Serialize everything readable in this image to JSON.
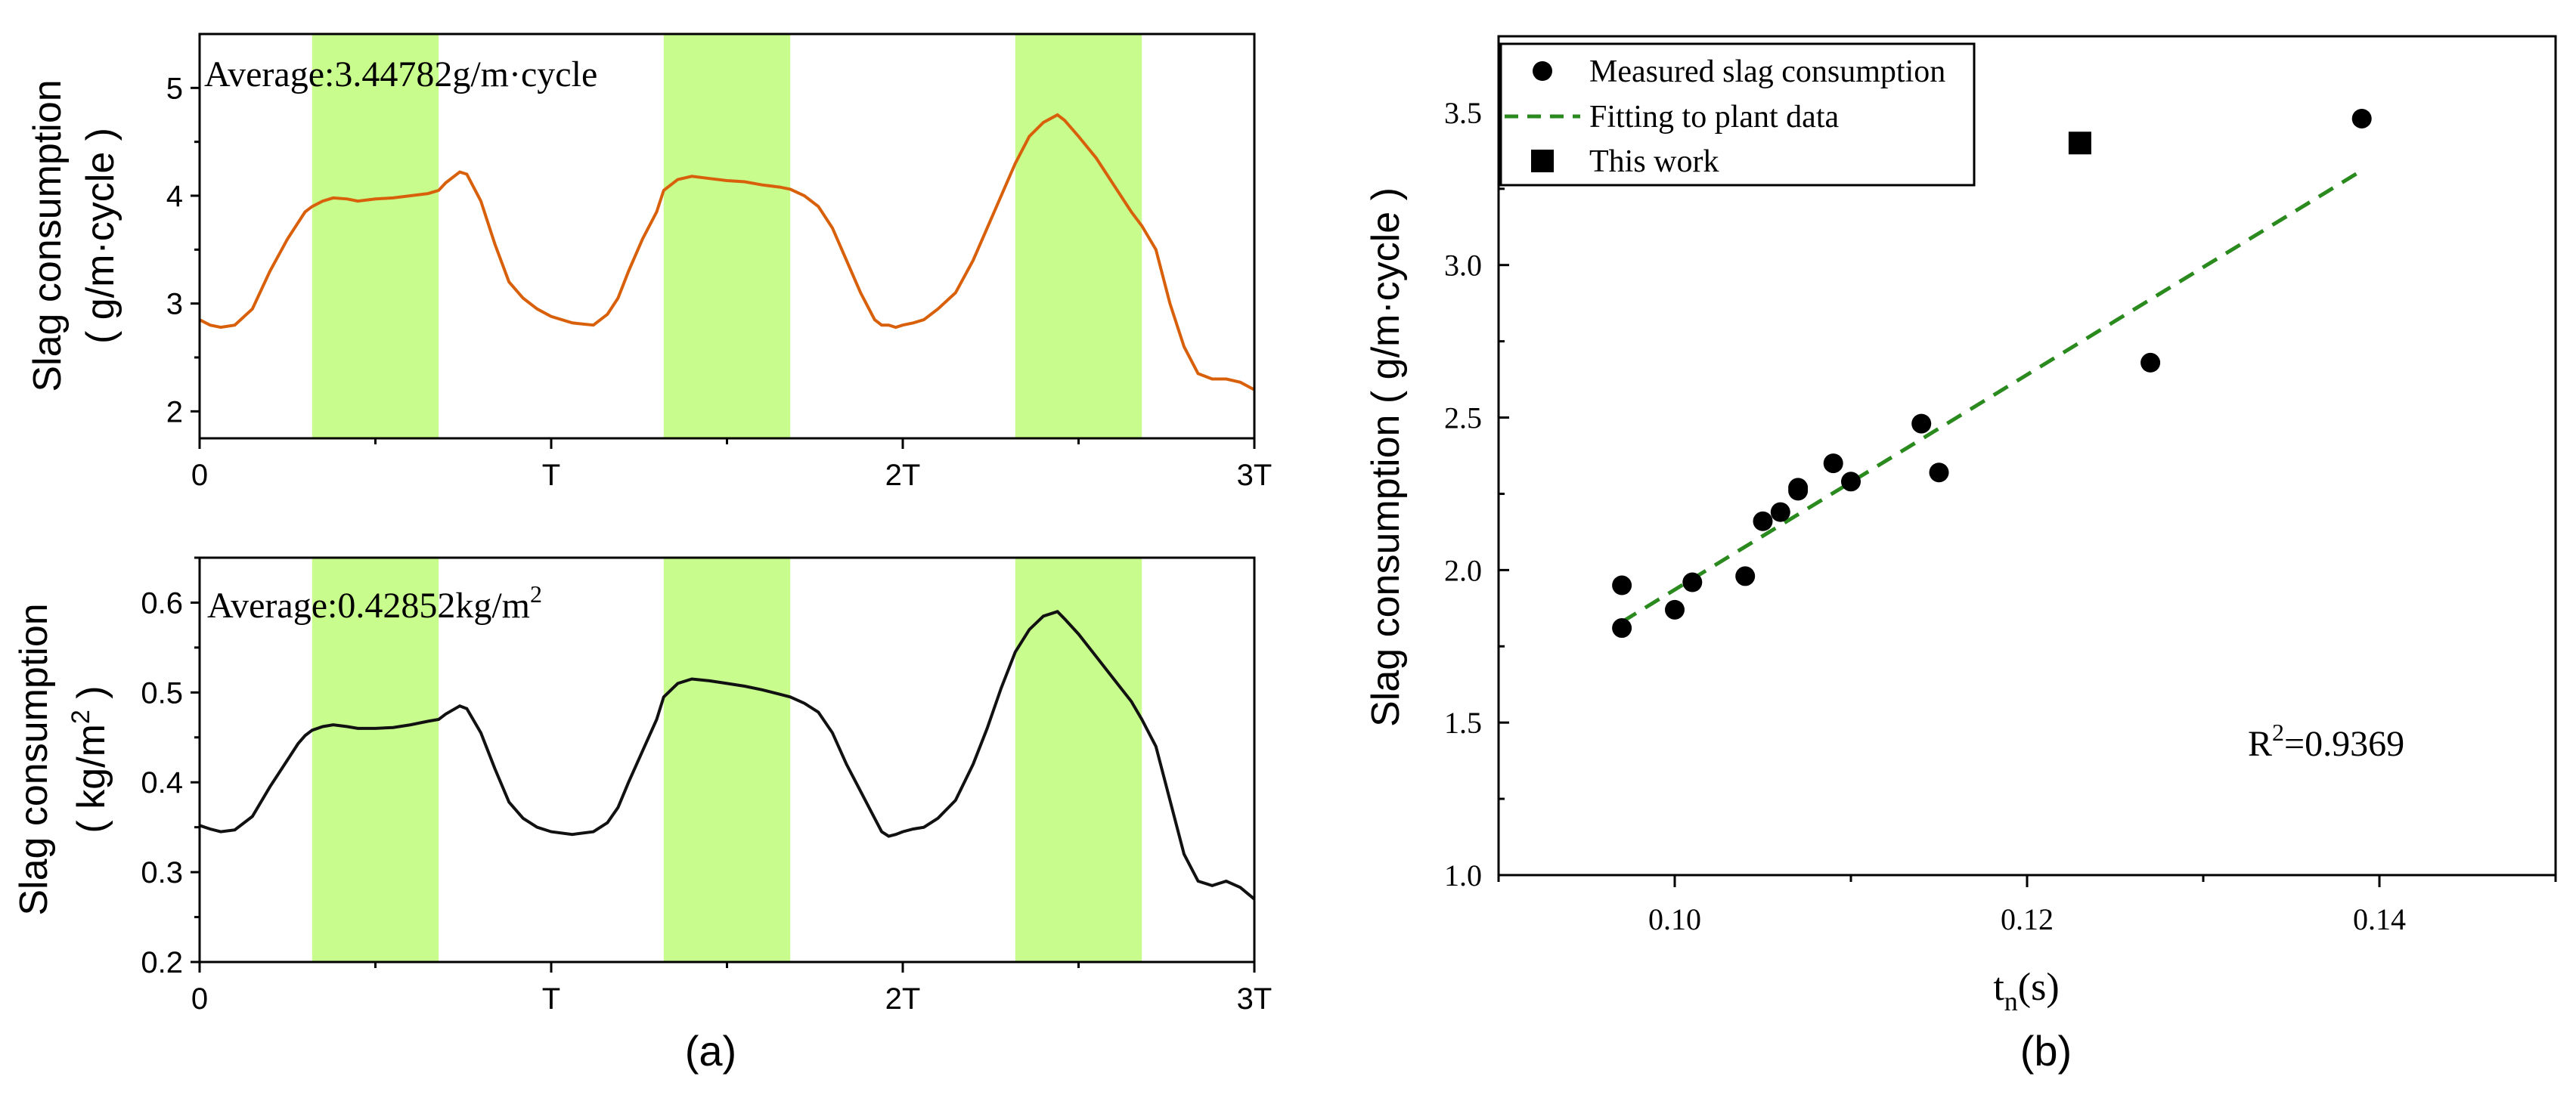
{
  "panel_a": {
    "caption": "(a)",
    "top": {
      "ylabel_line1": "Slag consumption",
      "ylabel_line2": "( g/m·cycle )",
      "annotation": "Average:3.44782g/m·cycle",
      "color": "#d9600a",
      "chart_data": {
        "type": "line",
        "ylim": [
          1.75,
          5.5
        ],
        "yticks": [
          2,
          3,
          4,
          5
        ],
        "ytick_labels": [
          "2",
          "3",
          "4",
          "5"
        ],
        "xlim": [
          0,
          3
        ],
        "xticks": [
          0,
          1,
          2,
          3
        ],
        "xtick_labels": [
          "0",
          "T",
          "2T",
          "3T"
        ],
        "highlight_bands": [
          [
            0.32,
            0.68
          ],
          [
            1.32,
            1.68
          ],
          [
            2.32,
            2.68
          ]
        ],
        "x": [
          0,
          0.03,
          0.06,
          0.1,
          0.15,
          0.2,
          0.25,
          0.28,
          0.3,
          0.32,
          0.35,
          0.38,
          0.42,
          0.45,
          0.5,
          0.55,
          0.6,
          0.65,
          0.68,
          0.7,
          0.74,
          0.76,
          0.8,
          0.84,
          0.88,
          0.92,
          0.96,
          1.0,
          1.06,
          1.12,
          1.16,
          1.19,
          1.22,
          1.26,
          1.3,
          1.32,
          1.36,
          1.4,
          1.45,
          1.5,
          1.55,
          1.6,
          1.65,
          1.68,
          1.72,
          1.76,
          1.8,
          1.84,
          1.88,
          1.92,
          1.94,
          1.96,
          1.98,
          2.0,
          2.03,
          2.06,
          2.1,
          2.15,
          2.2,
          2.24,
          2.28,
          2.32,
          2.36,
          2.4,
          2.44,
          2.46,
          2.5,
          2.55,
          2.6,
          2.65,
          2.68,
          2.72,
          2.76,
          2.8,
          2.84,
          2.88,
          2.92,
          2.96,
          3.0
        ],
        "values": [
          2.85,
          2.8,
          2.78,
          2.8,
          2.95,
          3.3,
          3.6,
          3.75,
          3.85,
          3.9,
          3.95,
          3.98,
          3.97,
          3.95,
          3.97,
          3.98,
          4.0,
          4.02,
          4.05,
          4.12,
          4.22,
          4.2,
          3.95,
          3.55,
          3.2,
          3.05,
          2.95,
          2.88,
          2.82,
          2.8,
          2.9,
          3.05,
          3.3,
          3.6,
          3.85,
          4.05,
          4.15,
          4.18,
          4.16,
          4.14,
          4.13,
          4.1,
          4.08,
          4.06,
          4.0,
          3.9,
          3.7,
          3.4,
          3.1,
          2.85,
          2.8,
          2.8,
          2.78,
          2.8,
          2.82,
          2.85,
          2.95,
          3.1,
          3.4,
          3.7,
          4.0,
          4.3,
          4.55,
          4.68,
          4.75,
          4.7,
          4.55,
          4.35,
          4.1,
          3.85,
          3.72,
          3.5,
          3.0,
          2.6,
          2.35,
          2.3,
          2.3,
          2.27,
          2.2
        ],
        "series_color": "#d9600a"
      }
    },
    "bottom": {
      "ylabel_line1": "Slag consumption",
      "ylabel_line2": "( kg/m",
      "ylabel_sup": "2",
      "ylabel_line2_end": " )",
      "annotation": "Average:0.42852kg/m",
      "annotation_sup": "2",
      "color": "#111111",
      "chart_data": {
        "type": "line",
        "ylim": [
          0.2,
          0.65
        ],
        "yticks": [
          0.2,
          0.3,
          0.4,
          0.5,
          0.6
        ],
        "ytick_labels": [
          "0.2",
          "0.3",
          "0.4",
          "0.5",
          "0.6"
        ],
        "xlim": [
          0,
          3
        ],
        "xticks": [
          0,
          1,
          2,
          3
        ],
        "xtick_labels": [
          "0",
          "T",
          "2T",
          "3T"
        ],
        "highlight_bands": [
          [
            0.32,
            0.68
          ],
          [
            1.32,
            1.68
          ],
          [
            2.32,
            2.68
          ]
        ],
        "x": [
          0,
          0.03,
          0.06,
          0.1,
          0.15,
          0.2,
          0.25,
          0.28,
          0.3,
          0.32,
          0.35,
          0.38,
          0.42,
          0.45,
          0.5,
          0.55,
          0.6,
          0.65,
          0.68,
          0.7,
          0.74,
          0.76,
          0.8,
          0.84,
          0.88,
          0.92,
          0.96,
          1.0,
          1.06,
          1.12,
          1.16,
          1.19,
          1.22,
          1.26,
          1.3,
          1.32,
          1.36,
          1.4,
          1.45,
          1.5,
          1.55,
          1.6,
          1.65,
          1.68,
          1.72,
          1.76,
          1.8,
          1.84,
          1.88,
          1.92,
          1.94,
          1.96,
          1.98,
          2.0,
          2.03,
          2.06,
          2.1,
          2.15,
          2.2,
          2.24,
          2.28,
          2.32,
          2.36,
          2.4,
          2.44,
          2.46,
          2.5,
          2.55,
          2.6,
          2.65,
          2.68,
          2.72,
          2.76,
          2.8,
          2.84,
          2.88,
          2.92,
          2.96,
          3.0
        ],
        "values": [
          0.352,
          0.348,
          0.345,
          0.347,
          0.362,
          0.395,
          0.425,
          0.443,
          0.452,
          0.458,
          0.462,
          0.464,
          0.462,
          0.46,
          0.46,
          0.461,
          0.464,
          0.468,
          0.47,
          0.476,
          0.485,
          0.482,
          0.455,
          0.415,
          0.378,
          0.36,
          0.35,
          0.345,
          0.342,
          0.345,
          0.355,
          0.372,
          0.4,
          0.435,
          0.47,
          0.495,
          0.51,
          0.515,
          0.513,
          0.51,
          0.507,
          0.503,
          0.498,
          0.495,
          0.488,
          0.478,
          0.455,
          0.42,
          0.39,
          0.36,
          0.345,
          0.34,
          0.342,
          0.345,
          0.348,
          0.35,
          0.36,
          0.38,
          0.42,
          0.46,
          0.505,
          0.545,
          0.57,
          0.585,
          0.59,
          0.582,
          0.565,
          0.54,
          0.515,
          0.49,
          0.47,
          0.44,
          0.38,
          0.32,
          0.29,
          0.285,
          0.29,
          0.283,
          0.27
        ],
        "series_color": "#111111"
      }
    }
  },
  "panel_b": {
    "caption": "(b)",
    "ylabel": "Slag consumption ( g/m·cycle )",
    "xlabel_main": "t",
    "xlabel_sub": "n",
    "xlabel_end": "(s)",
    "r2_prefix": "R",
    "r2_sup": "2",
    "r2_value": "=0.9369",
    "legend": {
      "measured": "Measured slag consumption",
      "fitting": "Fitting to plant data",
      "this_work": "This work"
    },
    "chart_data": {
      "type": "scatter",
      "xlim": [
        0.09,
        0.15
      ],
      "ylim": [
        1.0,
        3.75
      ],
      "xticks": [
        0.1,
        0.12,
        0.14
      ],
      "xtick_labels": [
        "0.10",
        "0.12",
        "0.14"
      ],
      "yticks": [
        1.0,
        1.5,
        2.0,
        2.5,
        3.0,
        3.5
      ],
      "ytick_labels": [
        "1.0",
        "1.5",
        "2.0",
        "2.5",
        "3.0",
        "3.5"
      ],
      "measured_x": [
        0.097,
        0.097,
        0.1,
        0.101,
        0.104,
        0.105,
        0.106,
        0.107,
        0.107,
        0.109,
        0.11,
        0.114,
        0.115,
        0.127,
        0.139
      ],
      "measured_y": [
        1.95,
        1.81,
        1.87,
        1.96,
        1.98,
        2.16,
        2.19,
        2.26,
        2.27,
        2.35,
        2.29,
        2.48,
        2.32,
        2.68,
        3.48
      ],
      "fit_line": {
        "x": [
          0.097,
          0.139
        ],
        "y": [
          1.83,
          3.31
        ]
      },
      "this_work": {
        "x": 0.123,
        "y": 3.4
      },
      "fit_color": "#2a8a1e",
      "r2": 0.9369
    }
  }
}
